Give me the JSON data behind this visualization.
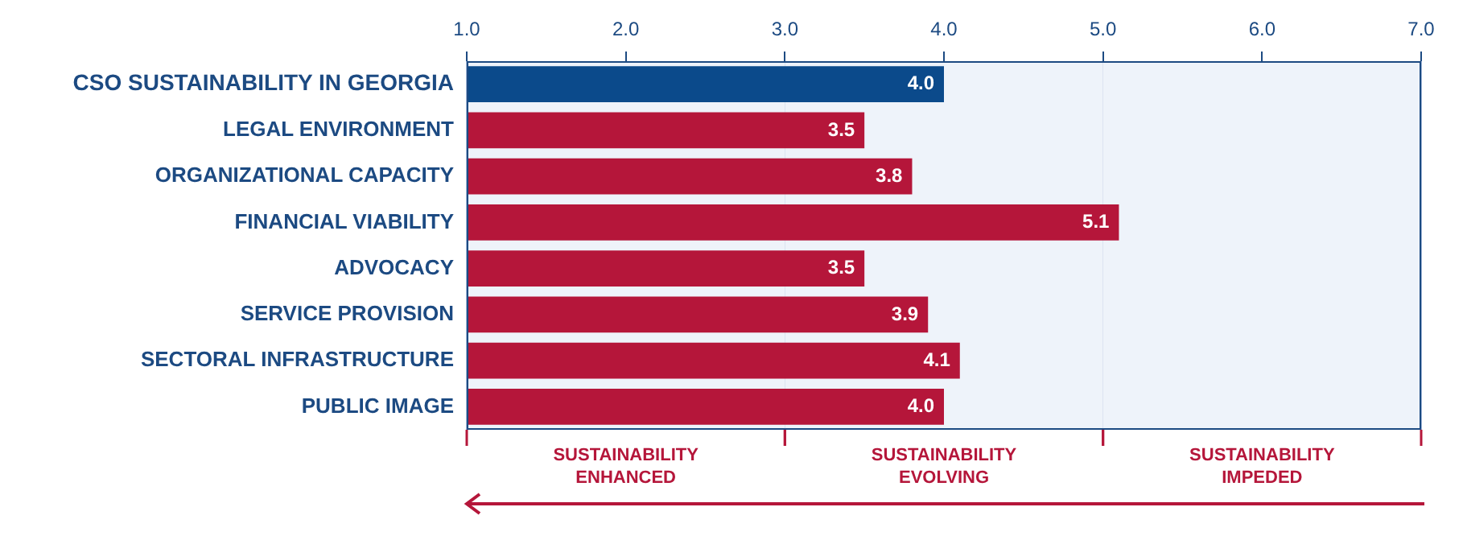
{
  "chart_data": {
    "type": "bar",
    "orientation": "horizontal",
    "categories": [
      "CSO SUSTAINABILITY IN GEORGIA",
      "LEGAL ENVIRONMENT",
      "ORGANIZATIONAL CAPACITY",
      "FINANCIAL VIABILITY",
      "ADVOCACY",
      "SERVICE PROVISION",
      "SECTORAL INFRASTRUCTURE",
      "PUBLIC IMAGE"
    ],
    "values": [
      4.0,
      3.5,
      3.8,
      5.1,
      3.5,
      3.9,
      4.1,
      4.0
    ],
    "colors": [
      "#0b4a8b",
      "#b5163a",
      "#b5163a",
      "#b5163a",
      "#b5163a",
      "#b5163a",
      "#b5163a",
      "#b5163a"
    ],
    "value_labels": [
      "4.0",
      "3.5",
      "3.8",
      "5.1",
      "3.5",
      "3.9",
      "4.1",
      "4.0"
    ],
    "xlim": [
      1,
      7
    ],
    "xticks": [
      {
        "value": 1,
        "label": "1.0"
      },
      {
        "value": 2,
        "label": "2.0"
      },
      {
        "value": 3,
        "label": "3.0"
      },
      {
        "value": 4,
        "label": "4.0"
      },
      {
        "value": 5,
        "label": "5.0"
      },
      {
        "value": 6,
        "label": "6.0"
      },
      {
        "value": 7,
        "label": "7.0"
      }
    ],
    "grid": "x",
    "legend": false,
    "bands": [
      {
        "axis": "x",
        "from": 1,
        "to": 3,
        "label": "SUSTAINABILITY ENHANCED",
        "color": "#eef3fa"
      },
      {
        "axis": "x",
        "from": 3,
        "to": 5,
        "label": "SUSTAINABILITY EVOLVING",
        "color": "#eef3fa"
      },
      {
        "axis": "x",
        "from": 5,
        "to": 7,
        "label": "SUSTAINABILITY IMPEDED",
        "color": "#eef3fa"
      }
    ]
  }
}
